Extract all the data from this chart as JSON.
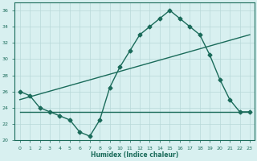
{
  "line1_x": [
    0,
    1,
    2,
    3,
    4,
    5,
    6,
    7,
    8,
    9,
    10,
    11,
    12,
    13,
    14,
    15,
    16,
    17,
    18,
    19,
    20,
    21,
    22,
    23
  ],
  "line1_y": [
    26.0,
    25.5,
    24.0,
    23.5,
    23.0,
    22.5,
    21.0,
    20.5,
    22.5,
    26.5,
    29.0,
    31.0,
    33.0,
    34.0,
    35.0,
    36.0,
    35.0,
    34.0,
    33.0,
    30.5,
    27.5,
    25.0,
    23.5,
    23.5
  ],
  "line2_x": [
    0,
    23
  ],
  "line2_y": [
    25.0,
    33.0
  ],
  "line3_x": [
    0,
    23
  ],
  "line3_y": [
    23.5,
    23.5
  ],
  "color": "#1a6b5a",
  "bg_color": "#d8f0f0",
  "grid_color": "#b8d8d8",
  "xlabel": "Humidex (Indice chaleur)",
  "ylim": [
    20,
    37
  ],
  "xlim": [
    -0.5,
    23.5
  ],
  "yticks": [
    20,
    22,
    24,
    26,
    28,
    30,
    32,
    34,
    36
  ],
  "xticks": [
    0,
    1,
    2,
    3,
    4,
    5,
    6,
    7,
    8,
    9,
    10,
    11,
    12,
    13,
    14,
    15,
    16,
    17,
    18,
    19,
    20,
    21,
    22,
    23
  ],
  "xtick_labels": [
    "0",
    "1",
    "2",
    "3",
    "4",
    "5",
    "6",
    "7",
    "8",
    "9",
    "10",
    "11",
    "12",
    "13",
    "14",
    "15",
    "16",
    "17",
    "18",
    "19",
    "20",
    "21",
    "22",
    "23"
  ],
  "marker": "D",
  "markersize": 2.5,
  "linewidth": 1.0
}
